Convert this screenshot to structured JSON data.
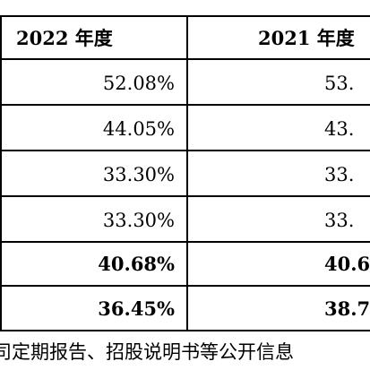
{
  "table": {
    "headers": [
      "2022 年度",
      "2021 年度"
    ],
    "rows": [
      {
        "c2022": "52.08%",
        "c2021": "53.",
        "bold": false
      },
      {
        "c2022": "44.05%",
        "c2021": "43.",
        "bold": false
      },
      {
        "c2022": "33.30%",
        "c2021": "33.",
        "bold": false
      },
      {
        "c2022": "33.30%",
        "c2021": "33.",
        "bold": false
      },
      {
        "c2022": "40.68%",
        "c2021": "40.6",
        "bold": true
      },
      {
        "c2022": "36.45%",
        "c2021": "38.7",
        "bold": true
      }
    ]
  },
  "footer": {
    "text": "司定期报告、招股说明书等公开信息"
  }
}
